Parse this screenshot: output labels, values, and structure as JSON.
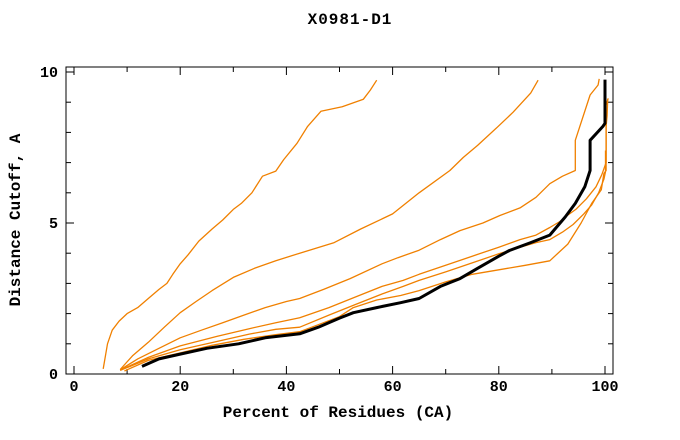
{
  "chart_data": {
    "type": "line",
    "title": "X0981-D1",
    "xlabel": "Percent of Residues (CA)",
    "ylabel": "Distance Cutoff, A",
    "xlim": [
      -1.5,
      101.5
    ],
    "ylim": [
      0,
      10.17
    ],
    "x_major_ticks": [
      0,
      20,
      40,
      60,
      80,
      100
    ],
    "x_minor_ticks": [
      10,
      30,
      50,
      70,
      90
    ],
    "y_major_ticks": [
      0,
      5,
      10
    ],
    "y_minor_ticks": [
      1,
      2,
      3,
      4,
      6,
      7,
      8,
      9
    ],
    "grid": false,
    "legend": false,
    "axis_color": "#000000",
    "series": [
      {
        "name": "orange-curve-1",
        "color": "#F08000",
        "width": 1.3,
        "points": [
          [
            5.5,
            0.17
          ],
          [
            6.3,
            1.0
          ],
          [
            7.2,
            1.45
          ],
          [
            8.5,
            1.75
          ],
          [
            10,
            2.0
          ],
          [
            12,
            2.2
          ],
          [
            14,
            2.5
          ],
          [
            16,
            2.8
          ],
          [
            17.5,
            3.0
          ],
          [
            18.6,
            3.3
          ],
          [
            20,
            3.65
          ],
          [
            21.5,
            3.95
          ],
          [
            23.5,
            4.4
          ],
          [
            26,
            4.8
          ],
          [
            28,
            5.1
          ],
          [
            30,
            5.45
          ],
          [
            31.5,
            5.65
          ],
          [
            33.5,
            6.0
          ],
          [
            35.5,
            6.55
          ],
          [
            38,
            6.72
          ],
          [
            39.5,
            7.1
          ],
          [
            42,
            7.64
          ],
          [
            44,
            8.2
          ],
          [
            46.5,
            8.7
          ],
          [
            50.5,
            8.85
          ],
          [
            54.5,
            9.1
          ],
          [
            55.8,
            9.4
          ],
          [
            57,
            9.73
          ]
        ]
      },
      {
        "name": "orange-curve-2",
        "color": "#F08000",
        "width": 1.3,
        "points": [
          [
            8.7,
            0.15
          ],
          [
            11,
            0.6
          ],
          [
            14,
            1.05
          ],
          [
            17,
            1.55
          ],
          [
            20,
            2.03
          ],
          [
            23,
            2.4
          ],
          [
            26,
            2.76
          ],
          [
            30,
            3.2
          ],
          [
            34,
            3.5
          ],
          [
            38,
            3.75
          ],
          [
            42.5,
            4.0
          ],
          [
            49,
            4.35
          ],
          [
            54,
            4.8
          ],
          [
            60,
            5.3
          ],
          [
            65,
            6.0
          ],
          [
            70.8,
            6.74
          ],
          [
            73.3,
            7.17
          ],
          [
            76,
            7.57
          ],
          [
            79.7,
            8.17
          ],
          [
            82.7,
            8.67
          ],
          [
            86,
            9.3
          ],
          [
            87.4,
            9.73
          ]
        ]
      },
      {
        "name": "orange-curve-3",
        "color": "#F08000",
        "width": 1.3,
        "points": [
          [
            8.7,
            0.14
          ],
          [
            12,
            0.5
          ],
          [
            16,
            0.85
          ],
          [
            20,
            1.2
          ],
          [
            24,
            1.45
          ],
          [
            28,
            1.7
          ],
          [
            32,
            1.95
          ],
          [
            36,
            2.2
          ],
          [
            40,
            2.4
          ],
          [
            42.5,
            2.5
          ],
          [
            47,
            2.8
          ],
          [
            52,
            3.16
          ],
          [
            58,
            3.65
          ],
          [
            61,
            3.85
          ],
          [
            65,
            4.1
          ],
          [
            69,
            4.45
          ],
          [
            72.7,
            4.75
          ],
          [
            77,
            5.0
          ],
          [
            80.2,
            5.25
          ],
          [
            84,
            5.5
          ],
          [
            87,
            5.85
          ],
          [
            89.6,
            6.3
          ],
          [
            92,
            6.55
          ],
          [
            94.4,
            6.74
          ],
          [
            94.4,
            7.74
          ],
          [
            97.2,
            9.24
          ],
          [
            98.7,
            9.57
          ],
          [
            98.9,
            9.77
          ]
        ]
      },
      {
        "name": "orange-curve-4",
        "color": "#F08000",
        "width": 1.3,
        "points": [
          [
            8.7,
            0.13
          ],
          [
            14,
            0.55
          ],
          [
            20,
            0.93
          ],
          [
            27,
            1.25
          ],
          [
            33,
            1.5
          ],
          [
            38,
            1.7
          ],
          [
            42.5,
            1.86
          ],
          [
            48,
            2.2
          ],
          [
            53,
            2.55
          ],
          [
            58,
            2.9
          ],
          [
            62,
            3.1
          ],
          [
            65,
            3.3
          ],
          [
            70,
            3.6
          ],
          [
            75,
            3.9
          ],
          [
            80,
            4.2
          ],
          [
            84,
            4.45
          ],
          [
            87,
            4.6
          ],
          [
            89.6,
            4.85
          ],
          [
            91.5,
            5.05
          ],
          [
            92.5,
            5.2
          ],
          [
            94.5,
            5.45
          ],
          [
            96.5,
            5.8
          ],
          [
            98.3,
            6.2
          ],
          [
            99.4,
            6.6
          ],
          [
            100.2,
            7.0
          ],
          [
            100.2,
            8.2
          ],
          [
            100.4,
            8.55
          ],
          [
            100.5,
            9.1
          ]
        ]
      },
      {
        "name": "orange-curve-5",
        "color": "#F08000",
        "width": 1.3,
        "points": [
          [
            8.7,
            0.12
          ],
          [
            14,
            0.5
          ],
          [
            20,
            0.8
          ],
          [
            27,
            1.08
          ],
          [
            33,
            1.32
          ],
          [
            38,
            1.48
          ],
          [
            42.5,
            1.55
          ],
          [
            48,
            1.95
          ],
          [
            53,
            2.3
          ],
          [
            58,
            2.65
          ],
          [
            62,
            2.9
          ],
          [
            65,
            3.1
          ],
          [
            70,
            3.38
          ],
          [
            75,
            3.68
          ],
          [
            80,
            3.98
          ],
          [
            84,
            4.2
          ],
          [
            87,
            4.35
          ],
          [
            89.6,
            4.45
          ],
          [
            92,
            4.7
          ],
          [
            94,
            4.95
          ],
          [
            96,
            5.3
          ],
          [
            97.5,
            5.6
          ],
          [
            98.8,
            6.0
          ],
          [
            99.8,
            6.45
          ],
          [
            100.1,
            6.7
          ],
          [
            100.1,
            7.4
          ]
        ]
      },
      {
        "name": "orange-curve-6",
        "color": "#F08000",
        "width": 1.3,
        "points": [
          [
            9.5,
            0.1
          ],
          [
            14,
            0.45
          ],
          [
            20,
            0.7
          ],
          [
            26,
            0.95
          ],
          [
            32,
            1.15
          ],
          [
            38,
            1.3
          ],
          [
            42.5,
            1.4
          ],
          [
            47,
            1.7
          ],
          [
            50,
            1.9
          ],
          [
            52.6,
            2.2
          ],
          [
            57,
            2.45
          ],
          [
            61.5,
            2.6
          ],
          [
            65,
            2.76
          ],
          [
            70,
            3.05
          ],
          [
            75,
            3.3
          ],
          [
            80,
            3.45
          ],
          [
            85,
            3.6
          ],
          [
            89.6,
            3.75
          ],
          [
            93,
            4.3
          ],
          [
            95.5,
            5.0
          ],
          [
            97.5,
            5.65
          ],
          [
            99.3,
            6.1
          ],
          [
            99.8,
            6.64
          ],
          [
            100.2,
            6.74
          ],
          [
            100.2,
            8.9
          ],
          [
            100.6,
            9.13
          ]
        ]
      },
      {
        "name": "black-curve",
        "color": "#000000",
        "width": 3,
        "points": [
          [
            12.8,
            0.25
          ],
          [
            16,
            0.5
          ],
          [
            20,
            0.66
          ],
          [
            25,
            0.85
          ],
          [
            31,
            1.0
          ],
          [
            36,
            1.2
          ],
          [
            42.5,
            1.33
          ],
          [
            46,
            1.55
          ],
          [
            50,
            1.85
          ],
          [
            52.6,
            2.03
          ],
          [
            57,
            2.2
          ],
          [
            61.5,
            2.36
          ],
          [
            65,
            2.5
          ],
          [
            69,
            2.9
          ],
          [
            72.7,
            3.16
          ],
          [
            76,
            3.5
          ],
          [
            80,
            3.9
          ],
          [
            82,
            4.09
          ],
          [
            86,
            4.35
          ],
          [
            89.6,
            4.6
          ],
          [
            92.5,
            5.2
          ],
          [
            94.4,
            5.65
          ],
          [
            96.2,
            6.2
          ],
          [
            97.2,
            6.74
          ],
          [
            97.2,
            7.74
          ],
          [
            99.6,
            8.2
          ],
          [
            100,
            8.3
          ],
          [
            100,
            9.75
          ]
        ]
      }
    ]
  }
}
